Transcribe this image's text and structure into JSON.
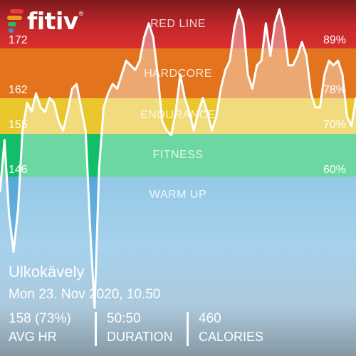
{
  "app": {
    "brand": "fitiv",
    "registered_mark": "®",
    "brand_colors": [
      "#ef3b3b",
      "#f29a1e",
      "#2bb673",
      "#2a9fd8"
    ]
  },
  "zones": [
    {
      "name": "RED LINE",
      "color": "#c3272a"
    },
    {
      "name": "HARDCORE",
      "color": "#e3731c"
    },
    {
      "name": "ENDURANCE",
      "color": "#e9c62c"
    },
    {
      "name": "FITNESS",
      "color": "#12be67"
    },
    {
      "name": "WARM UP",
      "color": "#6fb6e0"
    }
  ],
  "hr_thresholds": [
    "172",
    "162",
    "155",
    "146"
  ],
  "pct_thresholds": [
    "89%",
    "78%",
    "70%",
    "60%"
  ],
  "chart_data": {
    "type": "line",
    "series": [
      {
        "values": [
          135,
          146,
          130,
          122,
          131,
          148,
          154,
          152,
          156,
          153,
          152,
          155,
          154,
          150,
          148,
          152,
          157,
          158,
          153,
          148,
          127,
          110,
          140,
          153,
          156,
          158,
          157,
          160,
          163,
          162,
          161,
          163,
          168,
          171,
          168,
          160,
          150,
          148,
          147,
          152,
          160,
          155,
          152,
          148,
          152,
          155,
          152,
          148,
          151,
          157,
          161,
          163,
          170,
          174,
          171,
          160,
          157,
          162,
          163,
          171,
          164,
          171,
          174,
          170,
          162,
          162,
          164,
          167,
          164,
          156,
          153,
          153,
          160,
          163,
          162,
          163,
          160,
          151,
          149,
          155
        ]
      }
    ],
    "ylim": [
      118,
      176
    ]
  },
  "workout": {
    "title": "Ulkokävely",
    "datetime": "Mon 23. Nov 2020, 10.50"
  },
  "stats": [
    {
      "value": "158 (73%)",
      "label": "AVG HR"
    },
    {
      "value": "50:50",
      "label": "DURATION"
    },
    {
      "value": "460",
      "label": "CALORIES"
    }
  ]
}
